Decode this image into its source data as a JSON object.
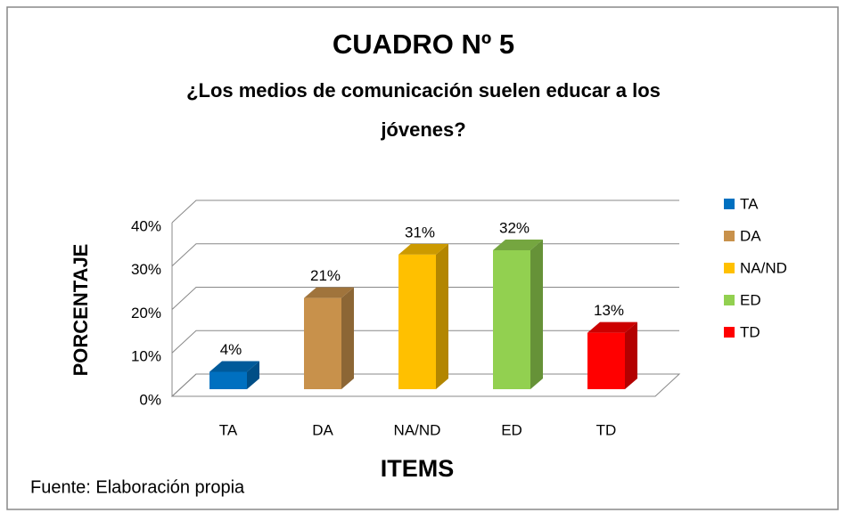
{
  "chart_data": {
    "type": "bar3d",
    "title": "CUADRO Nº 5",
    "subtitle": [
      "¿Los medios de comunicación suelen educar a los",
      "jóvenes?"
    ],
    "y_label": "PORCENTAJE",
    "x_label": "ITEMS",
    "source": "Fuente: Elaboración propia",
    "categories": [
      "TA",
      "DA",
      "NA/ND",
      "ED",
      "TD"
    ],
    "values": [
      4,
      21,
      31,
      32,
      13
    ],
    "value_labels": [
      "4%",
      "21%",
      "31%",
      "32%",
      "13%"
    ],
    "colors": [
      "#0070c0",
      "#c8914b",
      "#ffc000",
      "#92d050",
      "#ff0000"
    ],
    "ylim": [
      0,
      40
    ],
    "yticks": [
      {
        "value": 0,
        "label": "0%"
      },
      {
        "value": 10,
        "label": "10%"
      },
      {
        "value": 20,
        "label": "20%"
      },
      {
        "value": 30,
        "label": "30%"
      },
      {
        "value": 40,
        "label": "40%"
      }
    ],
    "grid": true,
    "legend": "right"
  }
}
